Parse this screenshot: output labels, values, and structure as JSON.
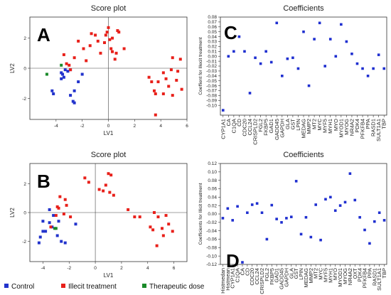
{
  "colors": {
    "control": "#2233cc",
    "illicit": "#e8201a",
    "therapeutic": "#1a8a2a",
    "coef": "#1f2fd0"
  },
  "legend": [
    {
      "label": "Control",
      "color": "#2233cc"
    },
    {
      "label": "Illecit treatment",
      "color": "#e8201a"
    },
    {
      "label": "Therapeutic dose",
      "color": "#1a8a2a"
    }
  ],
  "chart_data": [
    {
      "panel": "A",
      "type": "scatter",
      "title": "Score plot",
      "xlabel": "LV1",
      "ylabel": "LV2",
      "xlim": [
        -6,
        6
      ],
      "ylim": [
        -3.4,
        3.4
      ],
      "xticks": [
        -4,
        -2,
        0,
        2,
        4,
        6
      ],
      "yticks": [
        -2,
        0,
        2
      ],
      "series": [
        {
          "name": "Control",
          "color": "control",
          "points": [
            [
              -4.3,
              -1.5
            ],
            [
              -4.2,
              -1.7
            ],
            [
              -3.6,
              -0.7
            ],
            [
              -3.5,
              -0.4
            ],
            [
              -3.4,
              -0.6
            ],
            [
              -3.3,
              -0.1
            ],
            [
              -3.1,
              -0.2
            ],
            [
              -2.9,
              -1.8
            ],
            [
              -2.7,
              -2.2
            ],
            [
              -2.6,
              -2.3
            ],
            [
              -2.6,
              -1.5
            ],
            [
              -2.3,
              -0.9
            ],
            [
              -3.6,
              -0.3
            ],
            [
              -2.9,
              -0.1
            ],
            [
              -2.0,
              -0.4
            ]
          ]
        },
        {
          "name": "Illecit treatment",
          "color": "illicit",
          "points": [
            [
              -3.4,
              0.9
            ],
            [
              -3.2,
              0.3
            ],
            [
              -3.0,
              0.2
            ],
            [
              -2.9,
              -0.1
            ],
            [
              -2.6,
              0.7
            ],
            [
              -2.3,
              1.8
            ],
            [
              -1.9,
              1.3
            ],
            [
              -1.7,
              0.5
            ],
            [
              -1.4,
              1.5
            ],
            [
              -1.3,
              2.3
            ],
            [
              -1.0,
              2.2
            ],
            [
              -0.8,
              1.8
            ],
            [
              -0.6,
              1.0
            ],
            [
              -0.3,
              1.7
            ],
            [
              -0.2,
              2.2
            ],
            [
              -0.1,
              2.4
            ],
            [
              0.0,
              2.7
            ],
            [
              0.1,
              1.9
            ],
            [
              0.2,
              1.3
            ],
            [
              0.3,
              2.0
            ],
            [
              0.3,
              1.1
            ],
            [
              0.6,
              1.0
            ],
            [
              0.7,
              2.5
            ],
            [
              0.8,
              2.4
            ],
            [
              1.2,
              1.3
            ],
            [
              0.5,
              0.6
            ],
            [
              3.1,
              -0.6
            ],
            [
              3.3,
              -0.9
            ],
            [
              3.5,
              -1.5
            ],
            [
              3.6,
              -1.7
            ],
            [
              3.6,
              -3.1
            ],
            [
              3.8,
              -0.9
            ],
            [
              4.2,
              -0.3
            ],
            [
              4.4,
              -0.7
            ],
            [
              4.6,
              -1.2
            ],
            [
              4.8,
              -0.1
            ],
            [
              4.9,
              0.7
            ],
            [
              4.9,
              -1.8
            ],
            [
              5.2,
              -0.8
            ],
            [
              5.3,
              -0.2
            ],
            [
              5.5,
              0.6
            ],
            [
              5.6,
              -1.4
            ],
            [
              4.2,
              -1.7
            ]
          ]
        },
        {
          "name": "Therapeutic dose",
          "color": "therapeutic",
          "points": [
            [
              -4.7,
              -0.4
            ],
            [
              -3.6,
              0.2
            ]
          ]
        }
      ]
    },
    {
      "panel": "B",
      "type": "scatter",
      "title": "Score plot",
      "xlabel": "LV1",
      "ylabel": "LV2",
      "xlim": [
        -5,
        7
      ],
      "ylim": [
        -3.4,
        3.4
      ],
      "xticks": [
        -4,
        -2,
        0,
        2,
        4,
        6
      ],
      "yticks": [
        -2,
        0,
        2
      ],
      "series": [
        {
          "name": "Control",
          "color": "control",
          "points": [
            [
              -4.3,
              -2.1
            ],
            [
              -4.2,
              -1.7
            ],
            [
              -4.0,
              -0.6
            ],
            [
              -3.8,
              -1.3
            ],
            [
              -3.5,
              0.2
            ],
            [
              -3.3,
              -1.0
            ],
            [
              -3.2,
              -0.2
            ],
            [
              -2.9,
              -1.6
            ],
            [
              -2.8,
              -0.6
            ],
            [
              -2.6,
              -2.0
            ],
            [
              -2.3,
              -2.1
            ],
            [
              -1.5,
              -0.8
            ],
            [
              -3.5,
              -0.7
            ],
            [
              -4.0,
              -1.3
            ]
          ]
        },
        {
          "name": "Illecit treatment",
          "color": "illicit",
          "points": [
            [
              -3.4,
              -1.0
            ],
            [
              -3.0,
              -0.2
            ],
            [
              -2.9,
              0.4
            ],
            [
              -2.8,
              0.3
            ],
            [
              -2.7,
              1.1
            ],
            [
              -2.4,
              -0.1
            ],
            [
              -2.3,
              0.9
            ],
            [
              -2.2,
              0.5
            ],
            [
              -1.9,
              -0.3
            ],
            [
              -0.8,
              2.4
            ],
            [
              -0.5,
              2.1
            ],
            [
              0.3,
              1.6
            ],
            [
              0.6,
              1.5
            ],
            [
              0.8,
              1.9
            ],
            [
              1.0,
              2.7
            ],
            [
              1.2,
              2.6
            ],
            [
              1.1,
              1.4
            ],
            [
              1.4,
              1.2
            ],
            [
              2.5,
              0.2
            ],
            [
              3.0,
              -0.3
            ],
            [
              3.4,
              -0.3
            ],
            [
              4.2,
              -1.0
            ],
            [
              4.5,
              0.0
            ],
            [
              4.8,
              -0.3
            ],
            [
              5.1,
              -1.1
            ],
            [
              5.2,
              -1.6
            ],
            [
              5.4,
              -0.2
            ],
            [
              5.6,
              -0.8
            ],
            [
              5.9,
              -1.3
            ],
            [
              4.7,
              -2.3
            ],
            [
              4.4,
              -1.2
            ]
          ]
        },
        {
          "name": "Therapeutic dose",
          "color": "therapeutic",
          "points": [
            [
              -3.1,
              -1.1
            ],
            [
              -3.0,
              -1.1
            ]
          ]
        }
      ]
    },
    {
      "panel": "C",
      "type": "scatter",
      "title": "Coefficients",
      "ylabel": "Coeffient for Illecit treatment",
      "ylim": [
        -0.12,
        0.08
      ],
      "yticks": [
        -0.1,
        -0.09,
        -0.08,
        -0.07,
        -0.06,
        -0.05,
        -0.04,
        -0.03,
        -0.02,
        -0.01,
        0,
        0.01,
        0.02,
        0.03,
        0.04,
        0.05,
        0.06,
        0.07,
        0.08
      ],
      "ytick_labels": [
        "-0.10",
        "-0.09",
        "-0.08",
        "-0.07",
        "-0.06",
        "-0.05",
        "-0.04",
        "-0.03",
        "-0.02",
        "-0.01",
        "0.00",
        "0.01",
        "0.02",
        "0.03",
        "0.04",
        "0.05",
        "0.06",
        "0.07",
        "0.08"
      ],
      "categories": [
        "CYP1A1",
        "CA",
        "C1QA",
        "CD",
        "CDC20",
        "CCL24",
        "CRISPLD2",
        "FGL2",
        "FKBP5",
        "GAD1",
        "GADD45",
        "GAPDH",
        "GLA",
        "GST",
        "LPIN",
        "MEDAG",
        "MMP2",
        "MT2",
        "MYC",
        "MYF5",
        "MYH1",
        "MYO",
        "MYOD1",
        "MYOG",
        "NR4A2",
        "PDK4",
        "PFKFB4",
        "PPA",
        "RASD1",
        "SULT1A1",
        "TBP"
      ],
      "values": [
        -0.11,
        0.0,
        0.01,
        0.04,
        0.01,
        -0.075,
        -0.003,
        -0.015,
        0.01,
        -0.012,
        0.068,
        -0.04,
        -0.005,
        -0.003,
        -0.025,
        0.05,
        -0.06,
        0.035,
        0.068,
        -0.02,
        0.035,
        0.0,
        0.065,
        0.03,
        0.005,
        -0.015,
        -0.025,
        -0.04,
        -0.025,
        0.003,
        -0.025
      ]
    },
    {
      "panel": "D",
      "type": "scatter",
      "title": "Coefficients",
      "ylabel": "Coefficients for Illicit treatment",
      "ylim": [
        -0.12,
        0.12
      ],
      "yticks": [
        -0.12,
        -0.1,
        -0.08,
        -0.06,
        -0.04,
        -0.02,
        0,
        0.02,
        0.04,
        0.06,
        0.08,
        0.1,
        0.12
      ],
      "ytick_labels": [
        "-0.12",
        "-0.10",
        "-0.08",
        "-0.06",
        "-0.04",
        "-0.02",
        "0.00",
        "0.02",
        "0.04",
        "0.06",
        "0.08",
        "0.10",
        "0.12"
      ],
      "categories": [
        "Histmedan",
        "Histmean",
        "CYP1A1",
        "C1QA",
        "CA",
        "CD",
        "CDC20",
        "CCL24",
        "CRISPLD2",
        "FGL2",
        "FKBP5",
        "GAD1",
        "GADD45",
        "GAPDH",
        "GLA",
        "GST",
        "LPIN",
        "MEDAG",
        "MMP2",
        "MT2",
        "MYC",
        "MYF5",
        "MYH1",
        "MYO",
        "MYOD1",
        "MYOG",
        "NR4A2",
        "OXT",
        "PDK4",
        "PFKFB4",
        "PPA",
        "RASD1",
        "SULT1A1",
        "TBP"
      ],
      "values": [
        -0.01,
        0.013,
        -0.015,
        0.018,
        -0.115,
        0.003,
        0.022,
        0.025,
        0.003,
        -0.06,
        0.021,
        -0.012,
        -0.02,
        -0.01,
        -0.007,
        0.078,
        -0.048,
        -0.008,
        -0.055,
        0.022,
        -0.062,
        0.035,
        0.04,
        0.008,
        0.02,
        0.028,
        0.096,
        0.033,
        -0.008,
        -0.038,
        -0.07,
        -0.018,
        0.003,
        -0.015
      ]
    }
  ]
}
